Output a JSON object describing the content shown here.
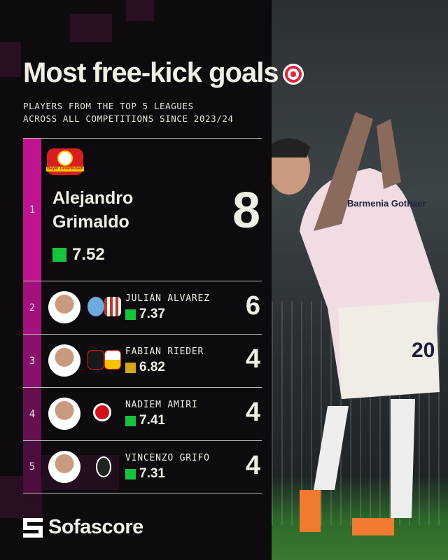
{
  "header": {
    "title": "Most free-kick goals",
    "title_icon": "dart-target-icon",
    "subtitle_lines": [
      "PLAYERS FROM THE TOP 5 LEAGUES",
      "ACROSS ALL COMPETITIONS SINCE 2023/24"
    ]
  },
  "colors": {
    "accent": "#c0138f",
    "rating_green": "#16c43c",
    "rating_yellow": "#d4a810",
    "text": "#f1eee6"
  },
  "leader": {
    "rank": "1",
    "first_name": "Alejandro",
    "last_name": "Grimaldo",
    "rating": "7.52",
    "goals": "8",
    "club": "Bayer Leverkusen"
  },
  "rows": [
    {
      "rank": "2",
      "name": "JULIÁN ALVAREZ",
      "rating": "7.37",
      "rating_color": "#16c43c",
      "goals": "6",
      "badges": [
        "#6cabdd",
        "#cb3524"
      ]
    },
    {
      "rank": "3",
      "name": "FABIAN RIEDER",
      "rating": "6.82",
      "rating_color": "#d4a810",
      "goals": "4",
      "badges": [
        "#1a1a1a",
        "#e32219"
      ]
    },
    {
      "rank": "4",
      "name": "NADIEM AMIRI",
      "rating": "7.41",
      "rating_color": "#16c43c",
      "goals": "4",
      "badges": [
        "#d0111b"
      ]
    },
    {
      "rank": "5",
      "name": "VINCENZO GRIFO",
      "rating": "7.31",
      "rating_color": "#16c43c",
      "goals": "4",
      "badges": [
        "#222222"
      ]
    }
  ],
  "footer": {
    "brand": "Sofascore"
  },
  "photo": {
    "shirt_number": "20",
    "sponsor": "Barmenia Gothaer"
  }
}
